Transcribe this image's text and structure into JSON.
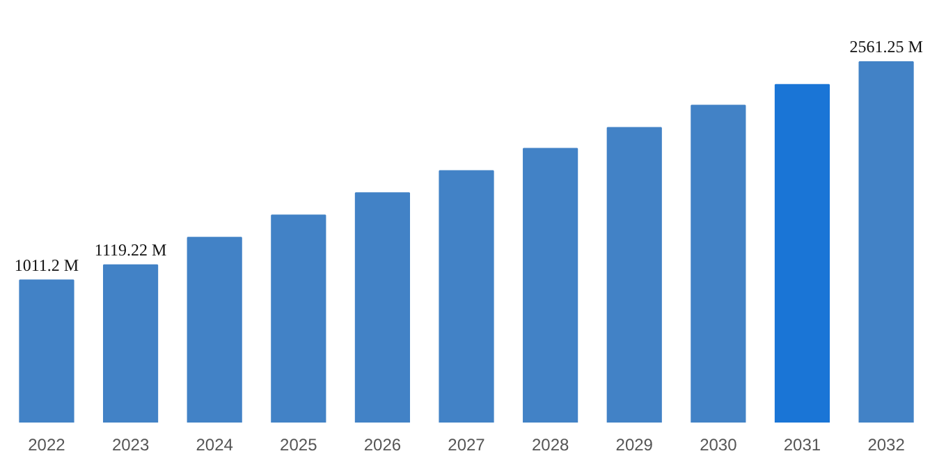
{
  "chart_data": {
    "type": "bar",
    "categories": [
      "2022",
      "2023",
      "2024",
      "2025",
      "2026",
      "2027",
      "2028",
      "2029",
      "2030",
      "2031",
      "2032"
    ],
    "values": [
      1011.2,
      1119.22,
      1314,
      1472,
      1630,
      1788,
      1946,
      2094,
      2252,
      2400,
      2561.25
    ],
    "colors": [
      "#4282c6",
      "#4282c6",
      "#4282c6",
      "#4282c6",
      "#4282c6",
      "#4282c6",
      "#4282c6",
      "#4282c6",
      "#4282c6",
      "#1a75d6",
      "#4282c6"
    ],
    "value_labels": [
      "1011.2 M",
      "1119.22 M",
      null,
      null,
      null,
      null,
      null,
      null,
      null,
      null,
      "2561.25 M"
    ],
    "grid": false
  }
}
